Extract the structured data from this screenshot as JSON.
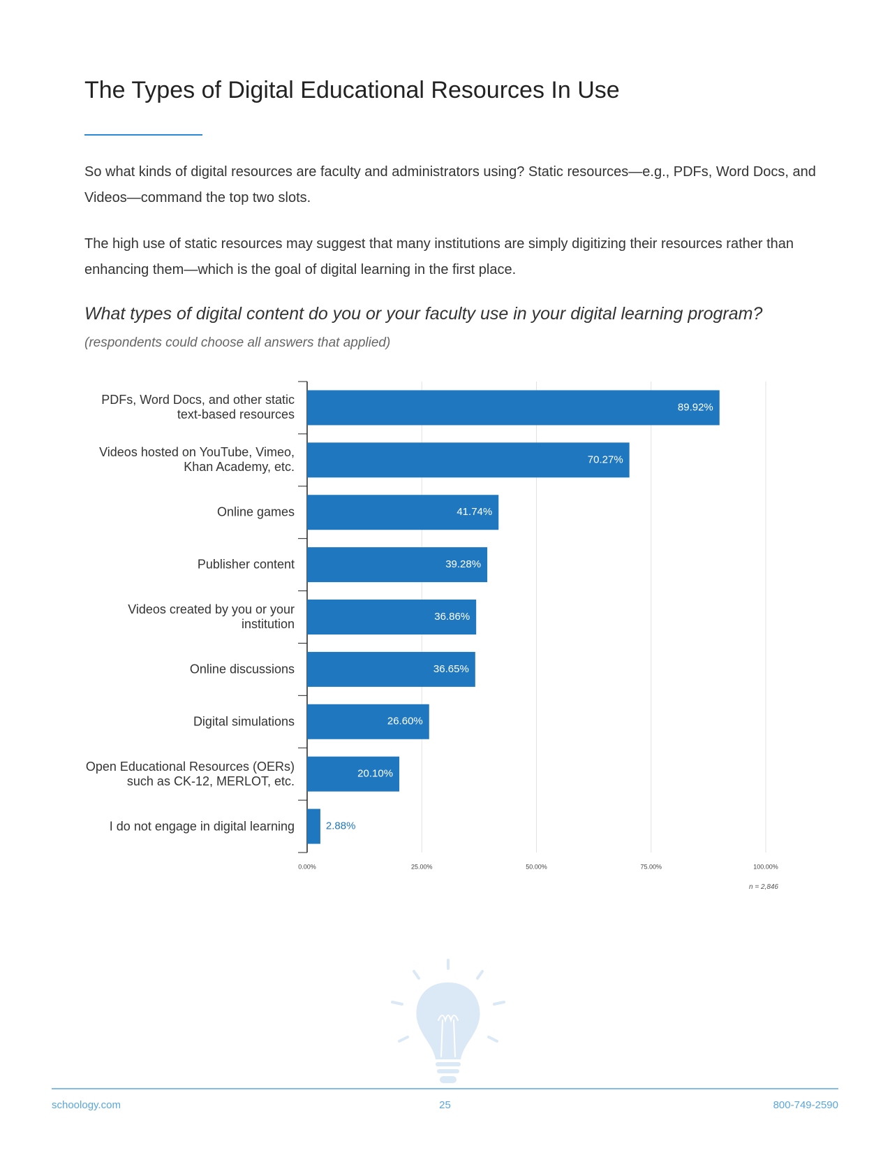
{
  "header": {
    "title": "The Types of Digital Educational Resources In Use"
  },
  "paragraphs": [
    "So what kinds of digital resources are faculty and administrators using? Static resources—e.g., PDFs, Word Docs, and Videos—command the top two slots.",
    "The high use of static resources may suggest that many institutions are simply digitizing their resources rather than enhancing them—which is the goal of digital learning in the first place."
  ],
  "question": "What types of digital content do you or your faculty use in your digital learning program?",
  "question_note": "(respondents could choose all answers that applied)",
  "chart_data": {
    "type": "hbar",
    "categories": [
      "PDFs, Word Docs, and other static text-based resources",
      "Videos hosted on YouTube, Vimeo, Khan Academy, etc.",
      "Online games",
      "Publisher content",
      "Videos created by you or your institution",
      "Online discussions",
      "Digital simulations",
      "Open Educational Resources (OERs) such as CK-12, MERLOT, etc.",
      "I do not engage in digital learning"
    ],
    "values": [
      89.92,
      70.27,
      41.74,
      39.28,
      36.86,
      36.65,
      26.6,
      20.1,
      2.88
    ],
    "value_labels": [
      "89.92%",
      "70.27%",
      "41.74%",
      "39.28%",
      "36.86%",
      "36.65%",
      "26.60%",
      "20.10%",
      "2.88%"
    ],
    "color": "#1f77bf",
    "xlim": [
      0,
      100
    ],
    "xticks": [
      {
        "value": 0,
        "label": "0.00%"
      },
      {
        "value": 25,
        "label": "25.00%"
      },
      {
        "value": 50,
        "label": "50.00%"
      },
      {
        "value": 75,
        "label": "75.00%"
      },
      {
        "value": 100,
        "label": "100.00%"
      }
    ],
    "grid": true,
    "note": "n = 2,846"
  },
  "footer": {
    "left": "schoology.com",
    "page": "25",
    "right": "800-749-2590"
  }
}
